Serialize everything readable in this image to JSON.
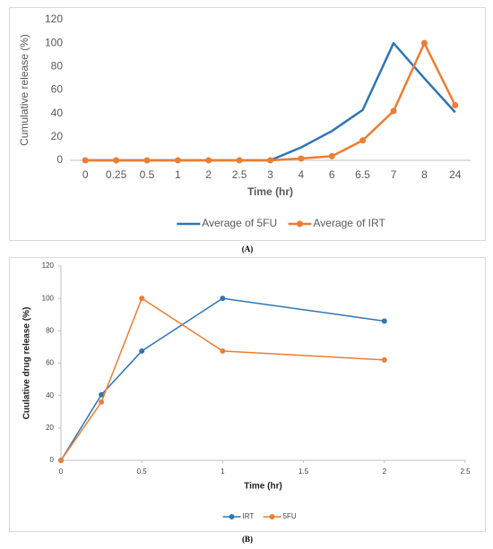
{
  "chart_data": [
    {
      "type": "line",
      "caption": "(A)",
      "xlabel": "Time (hr)",
      "ylabel": "Cumulative release (%)",
      "categories": [
        "0",
        "0.25",
        "0.5",
        "1",
        "2",
        "2.5",
        "3",
        "4",
        "6",
        "6.5",
        "7",
        "8",
        "24"
      ],
      "series": [
        {
          "name": "Average of 5FU",
          "color": "#2e75b6",
          "marker": false,
          "values": [
            0,
            0,
            0,
            0,
            0,
            0,
            0,
            11,
            25,
            43,
            100,
            70,
            41
          ]
        },
        {
          "name": "Average of IRT",
          "color": "#ed7d31",
          "marker": true,
          "values": [
            0,
            0,
            0,
            0,
            0,
            0,
            0,
            1.5,
            3.5,
            17,
            42,
            100,
            47
          ]
        }
      ],
      "ylim": [
        0,
        120
      ],
      "yticks": [
        0,
        20,
        40,
        60,
        80,
        100,
        120
      ],
      "grid": false,
      "legend": "bottom"
    },
    {
      "type": "line",
      "caption": "(B)",
      "xlabel": "Time (hr)",
      "ylabel": "Cuulative drug release (%)",
      "x": [
        0,
        0.25,
        0.5,
        1,
        2
      ],
      "series": [
        {
          "name": "IRT",
          "color": "#2e75b6",
          "marker": true,
          "values": [
            0,
            40.5,
            67.5,
            100,
            86
          ]
        },
        {
          "name": "5FU",
          "color": "#ed7d31",
          "marker": true,
          "values": [
            0,
            36,
            100,
            67.5,
            62
          ]
        }
      ],
      "xlim": [
        0,
        2.5
      ],
      "xticks": [
        0,
        0.5,
        1,
        1.5,
        2,
        2.5
      ],
      "ylim": [
        0,
        120
      ],
      "yticks": [
        0,
        20,
        40,
        60,
        80,
        100,
        120
      ],
      "grid": false,
      "legend": "bottom"
    }
  ]
}
